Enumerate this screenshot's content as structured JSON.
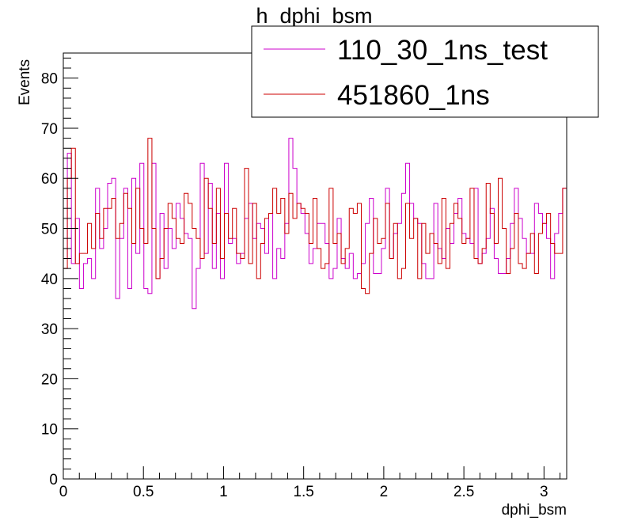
{
  "chart_data": {
    "type": "line",
    "title": "h_dphi_bsm",
    "xlabel": "dphi_bsm",
    "ylabel": "Events",
    "xlim": [
      0,
      3.14159
    ],
    "ylim": [
      0,
      85
    ],
    "x_ticks": [
      0,
      0.5,
      1,
      1.5,
      2,
      2.5,
      3
    ],
    "x_tick_labels": [
      "0",
      "0.5",
      "1",
      "1.5",
      "2",
      "2.5",
      "3"
    ],
    "y_ticks": [
      0,
      10,
      20,
      30,
      40,
      50,
      60,
      70,
      80
    ],
    "y_tick_labels": [
      "0",
      "10",
      "20",
      "30",
      "40",
      "50",
      "60",
      "70",
      "80"
    ],
    "legend_position": "top-right",
    "bins": 125,
    "series": [
      {
        "name": "110_30_1ns_test",
        "color": "#cc00cc",
        "values": [
          44,
          65,
          43,
          52,
          38,
          43,
          44,
          40,
          58,
          46,
          50,
          59,
          60,
          36,
          48,
          58,
          38,
          60,
          45,
          63,
          38,
          37,
          63,
          40,
          53,
          42,
          50,
          46,
          55,
          52,
          49,
          48,
          34,
          42,
          63,
          45,
          59,
          42,
          53,
          40,
          63,
          47,
          48,
          43,
          45,
          52,
          55,
          48,
          51,
          50,
          45,
          53,
          40,
          46,
          44,
          51,
          68,
          62,
          55,
          53,
          49,
          43,
          46,
          51,
          51,
          47,
          40,
          42,
          52,
          44,
          42,
          45,
          40,
          41,
          43,
          51,
          56,
          41,
          41,
          46,
          58,
          44,
          49,
          51,
          57,
          63,
          55,
          52,
          51,
          43,
          40,
          40,
          55,
          46,
          44,
          50,
          47,
          53,
          56,
          49,
          48,
          47,
          58,
          43,
          45,
          48,
          54,
          44,
          41,
          41,
          44,
          51,
          58,
          52,
          48,
          45,
          45,
          55,
          53,
          51,
          48,
          40,
          49,
          53,
          58
        ]
      },
      {
        "name": "451860_1ns",
        "color": "#cc0000",
        "values": [
          42,
          60,
          66,
          43,
          45,
          45,
          51,
          46,
          53,
          48,
          54,
          54,
          56,
          48,
          51,
          57,
          54,
          47,
          58,
          50,
          47,
          68,
          50,
          40,
          44,
          50,
          55,
          52,
          48,
          47,
          57,
          55,
          50,
          48,
          44,
          60,
          54,
          47,
          58,
          44,
          53,
          48,
          54,
          45,
          44,
          62,
          43,
          55,
          40,
          47,
          52,
          53,
          58,
          53,
          56,
          49,
          57,
          52,
          55,
          54,
          53,
          47,
          56,
          46,
          42,
          43,
          58,
          47,
          49,
          43,
          46,
          54,
          53,
          55,
          38,
          37,
          45,
          52,
          47,
          48,
          55,
          44,
          51,
          40,
          42,
          55,
          48,
          52,
          40,
          51,
          45,
          49,
          47,
          43,
          56,
          42,
          51,
          55,
          52,
          47,
          48,
          58,
          44,
          43,
          46,
          59,
          53,
          47,
          60,
          50,
          41,
          46,
          53,
          43,
          42,
          45,
          49,
          41,
          49,
          51,
          53,
          47,
          45,
          45,
          58
        ]
      }
    ]
  }
}
